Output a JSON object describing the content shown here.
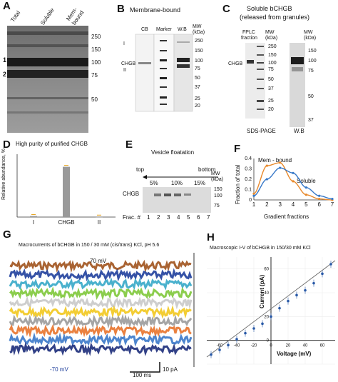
{
  "panelA": {
    "letter": "A",
    "lanes": [
      "Total",
      "Soluble",
      "Mem-\nbound"
    ],
    "lane_total": "Total",
    "lane_soluble": "Soluble",
    "lane_mem1": "Mem-",
    "lane_mem2": "bound",
    "mw": [
      "250",
      "150",
      "100",
      "75",
      "50"
    ],
    "markers": [
      "1",
      "2"
    ]
  },
  "panelB": {
    "letter": "B",
    "title": "Membrane-bound",
    "col_cb": "CB",
    "col_marker": "Marker",
    "col_wb": "W.B",
    "mw_head1": "MW",
    "mw_head2": "(kDa)",
    "label_I": "I",
    "label_chgb": "CHGB",
    "label_II": "II",
    "mw": [
      "250",
      "150",
      "100",
      "75",
      "50",
      "37",
      "25",
      "20"
    ]
  },
  "panelC": {
    "letter": "C",
    "title1": "Soluble bCHGB",
    "title2": "(released from granules)",
    "fplc1": "FPLC",
    "fplc2": "fraction",
    "mw_head1": "MW",
    "mw_head2": "(kDa)",
    "label_chgb": "CHGB",
    "sds": "SDS-PAGE",
    "wb": "W.B",
    "mw_left": [
      "250",
      "150",
      "100",
      "75",
      "50",
      "37",
      "25",
      "20"
    ],
    "mw_right": [
      "150",
      "100",
      "75",
      "50",
      "37"
    ]
  },
  "panelD": {
    "letter": "D",
    "chart_data": {
      "type": "bar",
      "title": "High purity of purified CHGB",
      "ylabel": "Relative abundance, %",
      "categories": [
        "I",
        "CHGB",
        "II"
      ],
      "values": [
        0.02,
        0.96,
        0.01
      ],
      "ylim": [
        0,
        1.2
      ],
      "colors": {
        "bar": "#9a9a9a",
        "error": "#e6a21a"
      }
    }
  },
  "panelE": {
    "letter": "E",
    "title": "Vesicle floatation",
    "top": "top",
    "bottom": "bottom",
    "pct": [
      "5%",
      "10%",
      "15%"
    ],
    "mw_head1": "MW",
    "mw_head2": "(kDa)",
    "mw": [
      "150",
      "100",
      "75"
    ],
    "label_chgb": "CHGB",
    "frac_label": "Frac. #",
    "fractions": [
      "1",
      "2",
      "3",
      "4",
      "5",
      "6",
      "7"
    ]
  },
  "panelF": {
    "letter": "F",
    "chart_data": {
      "type": "line",
      "xlabel": "Gradient fractions",
      "ylabel": "Fraction of total",
      "x": [
        1,
        2,
        3,
        4,
        5,
        6,
        7
      ],
      "ylim": [
        0,
        0.4
      ],
      "yticks": [
        "0",
        "0.1",
        "0.2",
        "0.3",
        "0.4"
      ],
      "series": [
        {
          "name": "Mem - bound",
          "color": "#e8892b",
          "values": [
            0.06,
            0.33,
            0.36,
            0.18,
            0.05,
            0.01,
            0.0
          ]
        },
        {
          "name": "Soluble",
          "color": "#3778c8",
          "values": [
            0.04,
            0.2,
            0.31,
            0.26,
            0.12,
            0.04,
            0.01
          ]
        }
      ]
    }
  },
  "panelG": {
    "letter": "G",
    "title": "Macrocurrents of bCHGB in 150 / 30 mM (cis/trans) KCl, pH 5.6",
    "top_voltage": "70 mV",
    "bottom_voltage": "-70 mV",
    "scale_time": "100 ms",
    "scale_current": "10 pA",
    "trace_colors": [
      "#a0521c",
      "#1f3f9c",
      "#36a8c8",
      "#7ec83a",
      "#c9c9c9",
      "#f2c81e",
      "#9b9b9b",
      "#e8732b",
      "#3a78c9",
      "#1c2c7a"
    ]
  },
  "panelH": {
    "letter": "H",
    "chart_data": {
      "type": "scatter",
      "title": "Macroscopic I-V of bCHGB in 150/30 mM KCl",
      "xlabel": "Voltage (mV)",
      "ylabel": "Current (pA)",
      "xticks": [
        "-60",
        "-40",
        "-20",
        "0",
        "20",
        "40",
        "60"
      ],
      "yticks": [
        "0",
        "20",
        "40",
        "60"
      ],
      "xlim": [
        -75,
        75
      ],
      "ylim": [
        -20,
        70
      ],
      "x": [
        -70,
        -60,
        -50,
        -40,
        -30,
        -20,
        -10,
        0,
        10,
        20,
        30,
        40,
        50,
        60,
        70
      ],
      "y": [
        -12,
        -8,
        -4,
        1,
        6,
        10,
        14,
        20,
        27,
        33,
        38,
        42,
        48,
        56,
        64
      ],
      "colors": {
        "point": "#2a5aa8",
        "fit": "#666666"
      }
    }
  }
}
